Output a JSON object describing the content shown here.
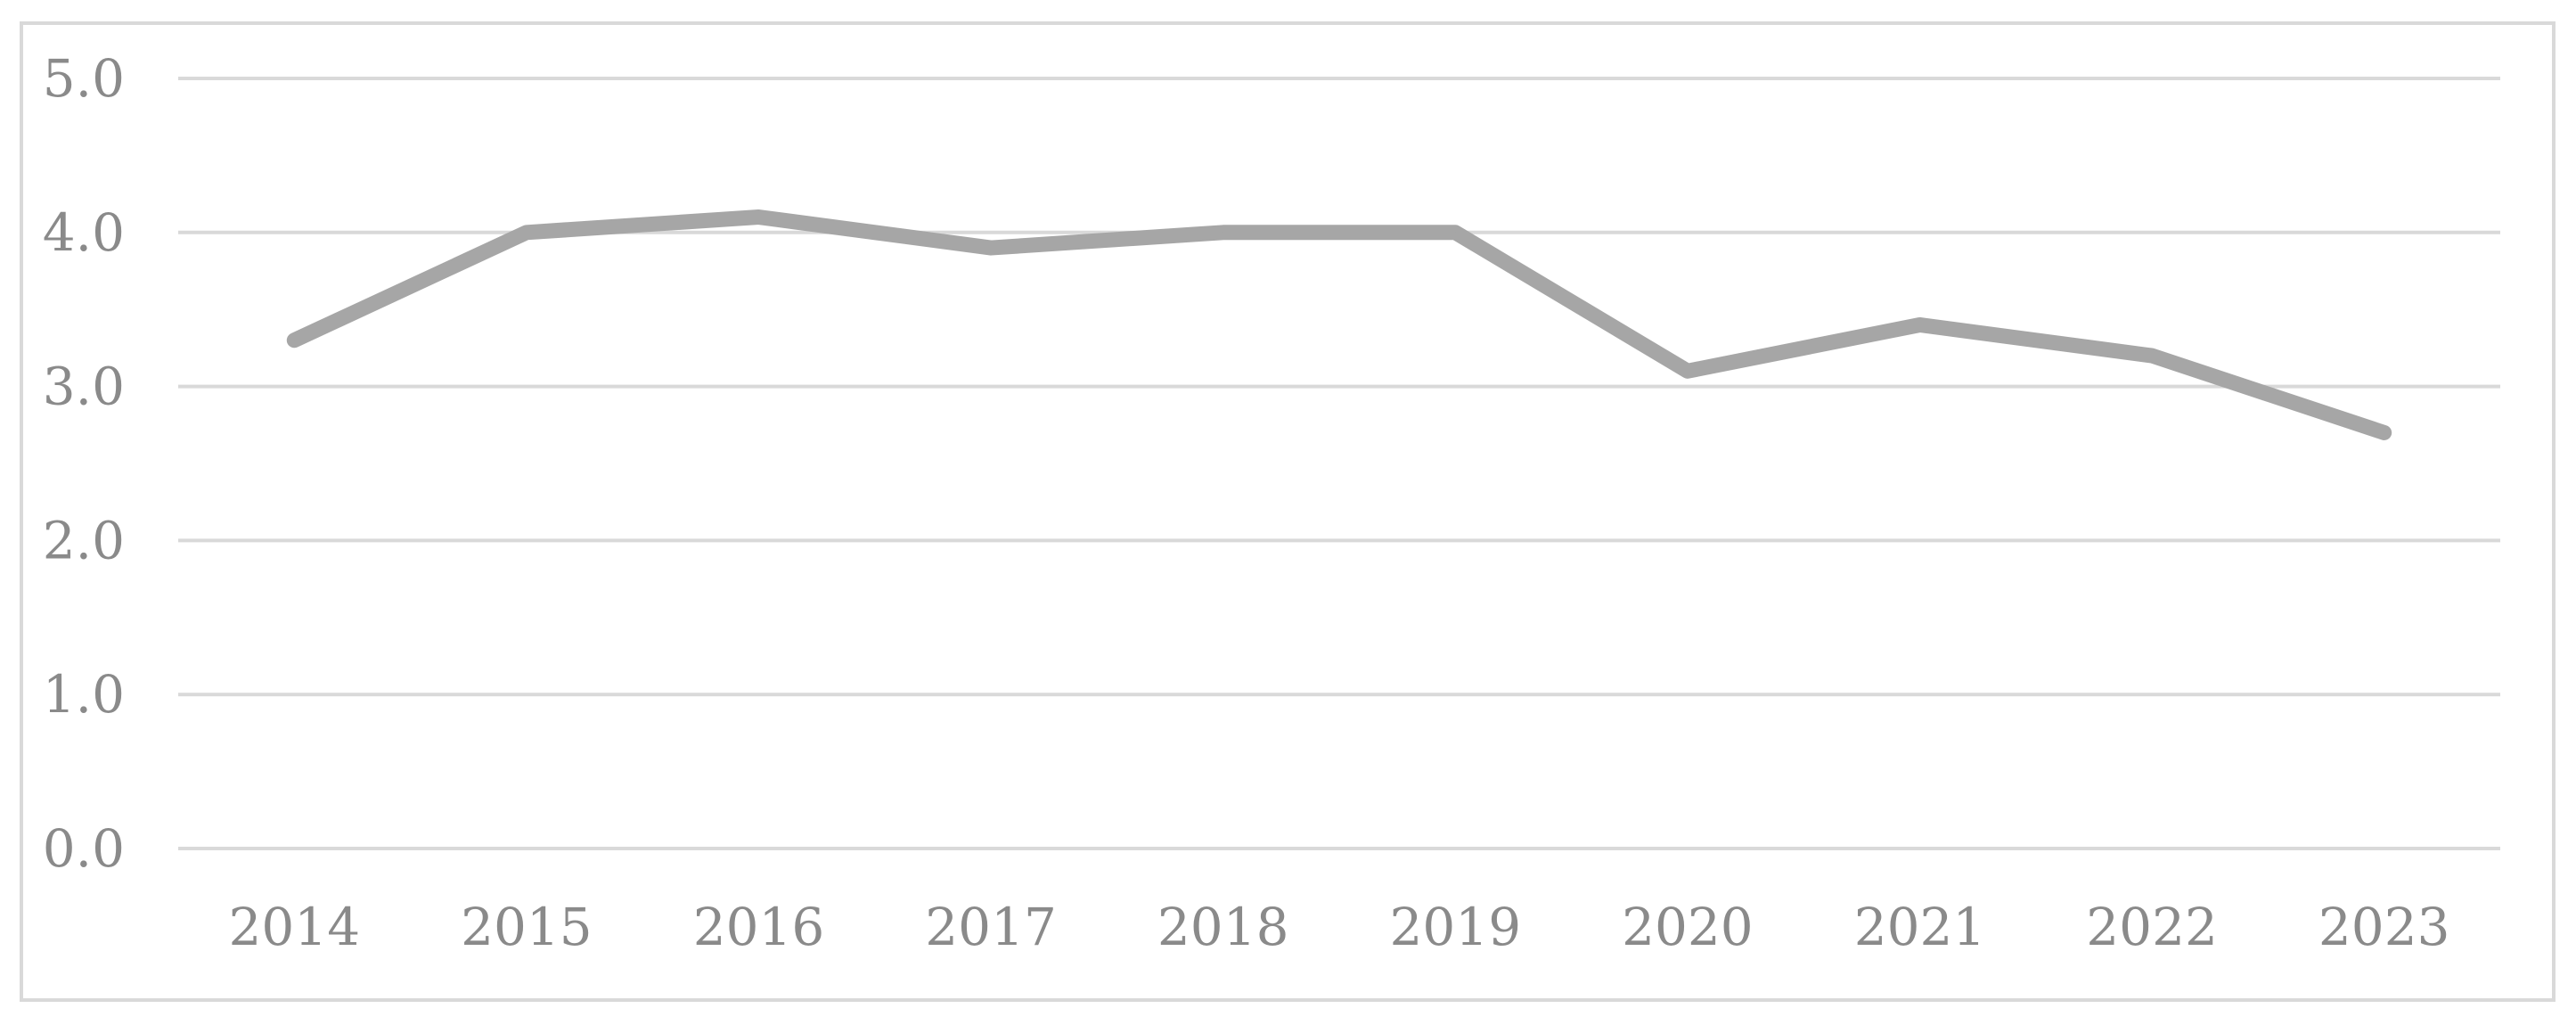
{
  "chart_data": {
    "type": "line",
    "categories": [
      "2014",
      "2015",
      "2016",
      "2017",
      "2018",
      "2019",
      "2020",
      "2021",
      "2022",
      "2023"
    ],
    "series": [
      {
        "values": [
          3.3,
          4.0,
          4.1,
          3.9,
          4.0,
          4.0,
          3.1,
          3.4,
          3.2,
          2.7
        ],
        "color": "#a6a6a6"
      }
    ],
    "y_ticks": [
      "0.0",
      "1.0",
      "2.0",
      "3.0",
      "4.0",
      "5.0"
    ],
    "ylim": [
      0,
      5
    ],
    "grid": true,
    "gridline_color": "#d9d9d9",
    "label_color": "#8a8a8a",
    "legend": "none"
  }
}
